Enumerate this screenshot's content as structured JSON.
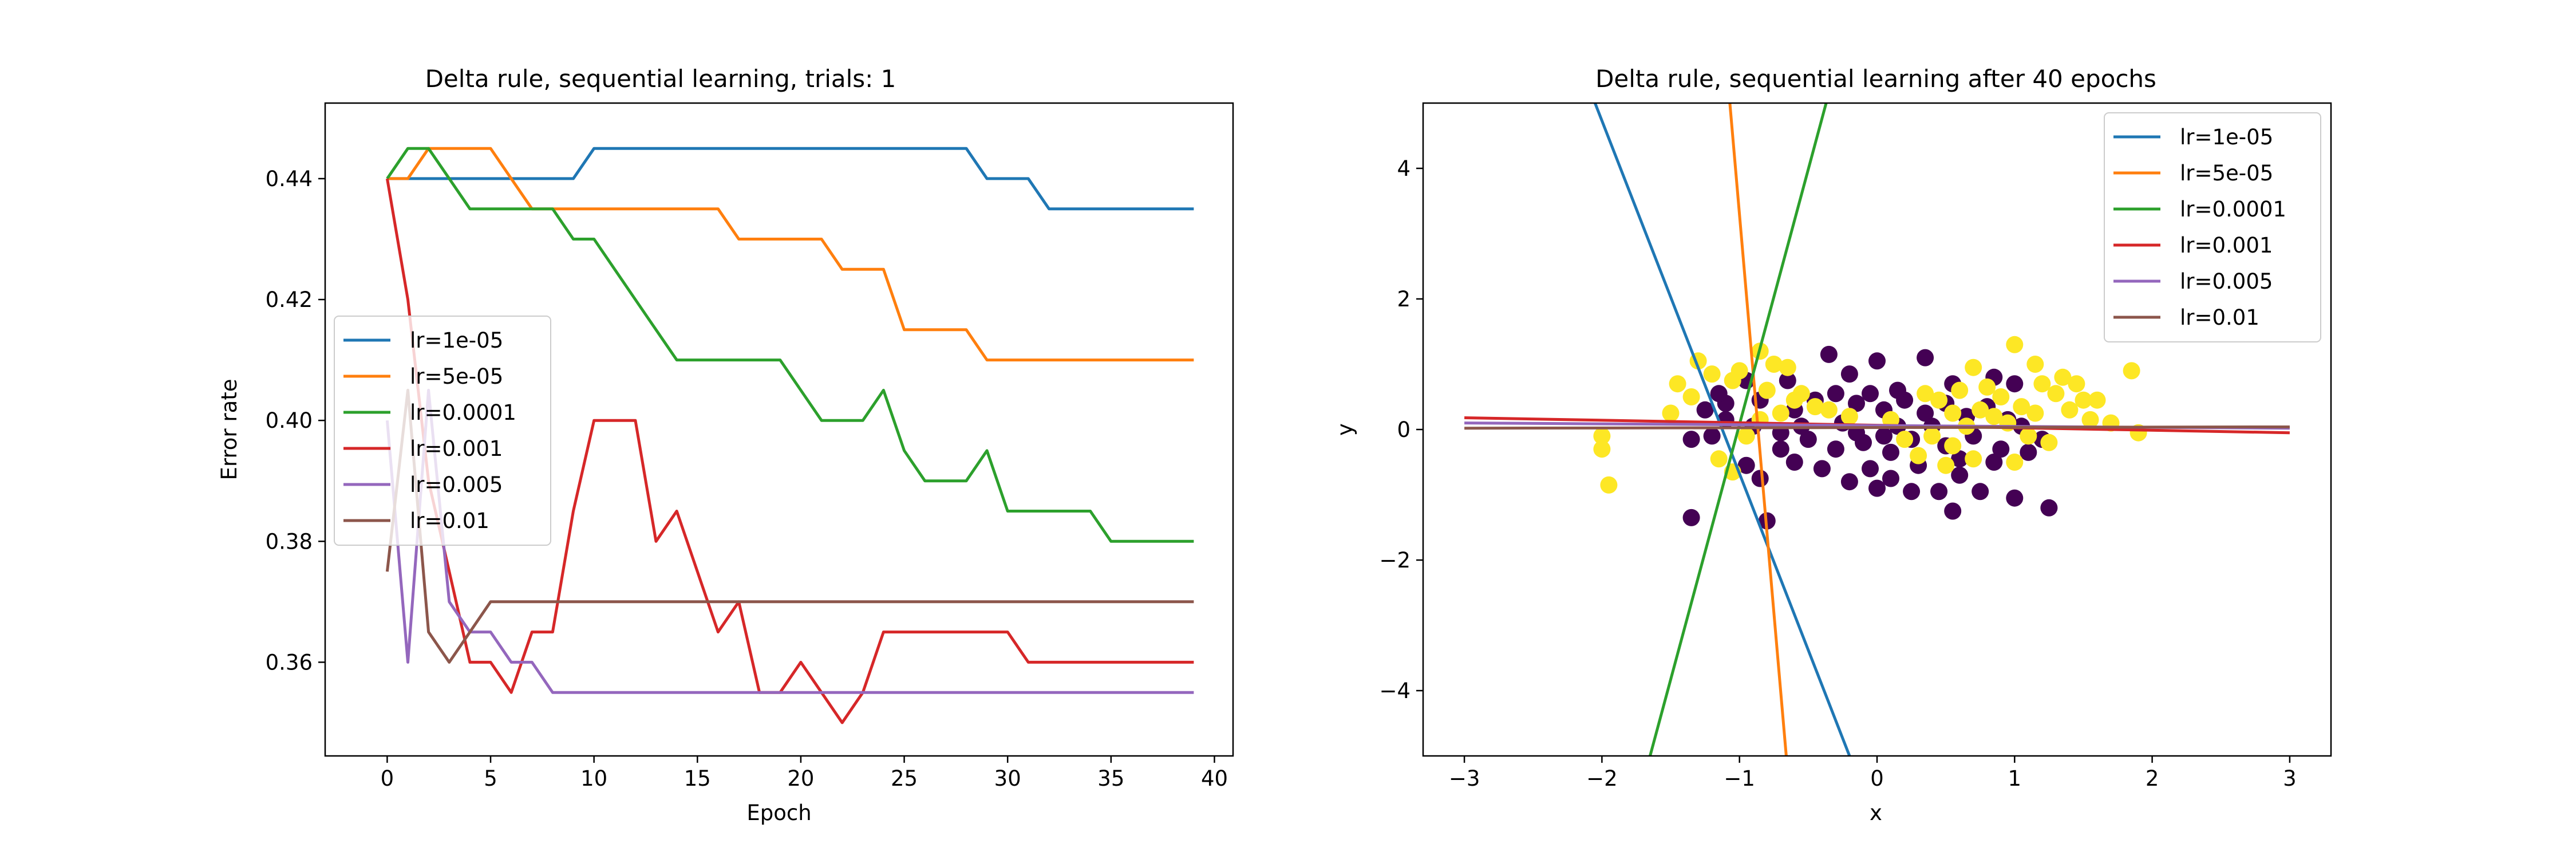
{
  "colors": {
    "series": [
      "#1f77b4",
      "#ff7f0e",
      "#2ca02c",
      "#d62728",
      "#9467bd",
      "#8c564b"
    ],
    "class0": "#440154",
    "class1": "#fde725"
  },
  "chart_data": [
    {
      "type": "line",
      "title": "Delta rule, sequential learning, trials: 1",
      "xlabel": "Epoch",
      "ylabel": "Error rate",
      "xlim": [
        -3,
        40.9
      ],
      "ylim": [
        0.3445,
        0.4525
      ],
      "xticks": [
        0,
        5,
        10,
        15,
        20,
        25,
        30,
        35,
        40
      ],
      "yticks": [
        0.36,
        0.38,
        0.4,
        0.42,
        0.44
      ],
      "xtick_labels": [
        "0",
        "5",
        "10",
        "15",
        "20",
        "25",
        "30",
        "35",
        "40"
      ],
      "ytick_labels": [
        "0.36",
        "0.38",
        "0.40",
        "0.42",
        "0.44"
      ],
      "grid": false,
      "legend_position": "center-left",
      "x": [
        0,
        1,
        2,
        3,
        4,
        5,
        6,
        7,
        8,
        9,
        10,
        11,
        12,
        13,
        14,
        15,
        16,
        17,
        18,
        19,
        20,
        21,
        22,
        23,
        24,
        25,
        26,
        27,
        28,
        29,
        30,
        31,
        32,
        33,
        34,
        35,
        36,
        37,
        38,
        39
      ],
      "series": [
        {
          "name": "lr=1e-05",
          "values": [
            0.44,
            0.44,
            0.44,
            0.44,
            0.44,
            0.44,
            0.44,
            0.44,
            0.44,
            0.44,
            0.445,
            0.445,
            0.445,
            0.445,
            0.445,
            0.445,
            0.445,
            0.445,
            0.445,
            0.445,
            0.445,
            0.445,
            0.445,
            0.445,
            0.445,
            0.445,
            0.445,
            0.445,
            0.445,
            0.44,
            0.44,
            0.44,
            0.435,
            0.435,
            0.435,
            0.435,
            0.435,
            0.435,
            0.435,
            0.435
          ]
        },
        {
          "name": "lr=5e-05",
          "values": [
            0.44,
            0.44,
            0.445,
            0.445,
            0.445,
            0.445,
            0.44,
            0.435,
            0.435,
            0.435,
            0.435,
            0.435,
            0.435,
            0.435,
            0.435,
            0.435,
            0.435,
            0.43,
            0.43,
            0.43,
            0.43,
            0.43,
            0.425,
            0.425,
            0.425,
            0.415,
            0.415,
            0.415,
            0.415,
            0.41,
            0.41,
            0.41,
            0.41,
            0.41,
            0.41,
            0.41,
            0.41,
            0.41,
            0.41,
            0.41
          ]
        },
        {
          "name": "lr=0.0001",
          "values": [
            0.44,
            0.445,
            0.445,
            0.44,
            0.435,
            0.435,
            0.435,
            0.435,
            0.435,
            0.43,
            0.43,
            0.425,
            0.42,
            0.415,
            0.41,
            0.41,
            0.41,
            0.41,
            0.41,
            0.41,
            0.405,
            0.4,
            0.4,
            0.4,
            0.405,
            0.395,
            0.39,
            0.39,
            0.39,
            0.395,
            0.385,
            0.385,
            0.385,
            0.385,
            0.385,
            0.38,
            0.38,
            0.38,
            0.38,
            0.38
          ]
        },
        {
          "name": "lr=0.001",
          "values": [
            0.44,
            0.42,
            0.39,
            0.375,
            0.36,
            0.36,
            0.355,
            0.365,
            0.365,
            0.385,
            0.4,
            0.4,
            0.4,
            0.38,
            0.385,
            0.375,
            0.365,
            0.37,
            0.355,
            0.355,
            0.36,
            0.355,
            0.35,
            0.355,
            0.365,
            0.365,
            0.365,
            0.365,
            0.365,
            0.365,
            0.365,
            0.36,
            0.36,
            0.36,
            0.36,
            0.36,
            0.36,
            0.36,
            0.36,
            0.36
          ]
        },
        {
          "name": "lr=0.005",
          "values": [
            0.4,
            0.36,
            0.405,
            0.37,
            0.365,
            0.365,
            0.36,
            0.36,
            0.355,
            0.355,
            0.355,
            0.355,
            0.355,
            0.355,
            0.355,
            0.355,
            0.355,
            0.355,
            0.355,
            0.355,
            0.355,
            0.355,
            0.355,
            0.355,
            0.355,
            0.355,
            0.355,
            0.355,
            0.355,
            0.355,
            0.355,
            0.355,
            0.355,
            0.355,
            0.355,
            0.355,
            0.355,
            0.355,
            0.355,
            0.355
          ]
        },
        {
          "name": "lr=0.01",
          "values": [
            0.375,
            0.405,
            0.365,
            0.36,
            0.365,
            0.37,
            0.37,
            0.37,
            0.37,
            0.37,
            0.37,
            0.37,
            0.37,
            0.37,
            0.37,
            0.37,
            0.37,
            0.37,
            0.37,
            0.37,
            0.37,
            0.37,
            0.37,
            0.37,
            0.37,
            0.37,
            0.37,
            0.37,
            0.37,
            0.37,
            0.37,
            0.37,
            0.37,
            0.37,
            0.37,
            0.37,
            0.37,
            0.37,
            0.37,
            0.37
          ]
        }
      ]
    },
    {
      "type": "scatter",
      "title": "Delta rule, sequential learning after 40 epochs",
      "xlabel": "x",
      "ylabel": "y",
      "xlim": [
        -3.3,
        3.3
      ],
      "ylim": [
        -5,
        5
      ],
      "xticks": [
        -3,
        -2,
        -1,
        0,
        1,
        2,
        3
      ],
      "yticks": [
        -4,
        -2,
        0,
        2,
        4
      ],
      "xtick_labels": [
        "−3",
        "−2",
        "−1",
        "0",
        "1",
        "2",
        "3"
      ],
      "ytick_labels": [
        "−4",
        "−2",
        "0",
        "2",
        "4"
      ],
      "grid": false,
      "legend_position": "top-right",
      "boundaries": [
        {
          "name": "lr=1e-05",
          "x": [
            -2.05,
            -0.2
          ],
          "y": [
            5,
            -5
          ]
        },
        {
          "name": "lr=5e-05",
          "x": [
            -1.07,
            -0.66
          ],
          "y": [
            5,
            -5
          ]
        },
        {
          "name": "lr=0.0001",
          "x": [
            -1.65,
            -0.37
          ],
          "y": [
            -5,
            5
          ]
        },
        {
          "name": "lr=0.001",
          "x": [
            -3,
            3
          ],
          "y": [
            0.18,
            -0.05
          ]
        },
        {
          "name": "lr=0.005",
          "x": [
            -3,
            3
          ],
          "y": [
            0.1,
            0.02
          ]
        },
        {
          "name": "lr=0.01",
          "x": [
            -3,
            3
          ],
          "y": [
            0.02,
            0.04
          ]
        }
      ],
      "points_class0": [
        [
          -1.35,
          -1.35
        ],
        [
          -0.8,
          -1.4
        ],
        [
          0.55,
          -1.25
        ],
        [
          1.25,
          -1.2
        ],
        [
          0.75,
          -0.95
        ],
        [
          1.0,
          -1.05
        ],
        [
          -0.95,
          -0.55
        ],
        [
          -0.85,
          -0.75
        ],
        [
          -0.6,
          -0.5
        ],
        [
          -0.4,
          -0.6
        ],
        [
          -0.2,
          -0.8
        ],
        [
          0.0,
          -0.9
        ],
        [
          0.1,
          -0.75
        ],
        [
          0.3,
          -0.55
        ],
        [
          0.45,
          -0.95
        ],
        [
          0.6,
          -0.7
        ],
        [
          0.85,
          -0.5
        ],
        [
          -0.3,
          -0.3
        ],
        [
          -0.1,
          -0.2
        ],
        [
          0.1,
          -0.35
        ],
        [
          0.25,
          -0.15
        ],
        [
          0.5,
          -0.25
        ],
        [
          0.7,
          -0.1
        ],
        [
          0.9,
          -0.3
        ],
        [
          1.1,
          -0.35
        ],
        [
          1.2,
          -0.15
        ],
        [
          -0.5,
          -0.15
        ],
        [
          -0.7,
          -0.05
        ],
        [
          -0.9,
          0.05
        ],
        [
          -1.1,
          0.15
        ],
        [
          -1.2,
          -0.1
        ],
        [
          -1.35,
          -0.15
        ],
        [
          -1.25,
          0.3
        ],
        [
          -1.1,
          0.4
        ],
        [
          -0.85,
          0.45
        ],
        [
          -0.6,
          0.3
        ],
        [
          -0.45,
          0.45
        ],
        [
          -0.3,
          0.55
        ],
        [
          -0.15,
          0.4
        ],
        [
          0.05,
          0.3
        ],
        [
          0.2,
          0.45
        ],
        [
          0.35,
          0.25
        ],
        [
          0.5,
          0.4
        ],
        [
          0.65,
          0.2
        ],
        [
          0.8,
          0.35
        ],
        [
          0.95,
          0.15
        ],
        [
          1.05,
          0.05
        ],
        [
          -0.35,
          1.15
        ],
        [
          -0.2,
          0.85
        ],
        [
          0.0,
          1.05
        ],
        [
          0.35,
          1.1
        ],
        [
          0.55,
          0.7
        ],
        [
          0.15,
          0.6
        ],
        [
          -0.05,
          0.55
        ],
        [
          -0.65,
          0.75
        ],
        [
          -0.95,
          0.75
        ],
        [
          -1.15,
          0.55
        ],
        [
          -0.25,
          0.1
        ],
        [
          0.15,
          0.05
        ],
        [
          0.4,
          0.05
        ],
        [
          -0.55,
          0.05
        ],
        [
          0.6,
          -0.45
        ],
        [
          -0.05,
          -0.6
        ],
        [
          0.25,
          -0.95
        ],
        [
          -0.7,
          -0.3
        ],
        [
          1.0,
          0.7
        ],
        [
          0.85,
          0.8
        ],
        [
          -0.15,
          -0.05
        ],
        [
          0.05,
          -0.1
        ]
      ],
      "points_class1": [
        [
          -1.95,
          -0.85
        ],
        [
          -2.0,
          -0.3
        ],
        [
          -2.0,
          -0.1
        ],
        [
          -1.5,
          0.25
        ],
        [
          -1.3,
          1.05
        ],
        [
          -1.2,
          0.85
        ],
        [
          -1.05,
          0.75
        ],
        [
          -0.85,
          1.2
        ],
        [
          -0.75,
          1.0
        ],
        [
          -0.65,
          0.95
        ],
        [
          -0.55,
          0.55
        ],
        [
          -0.45,
          0.35
        ],
        [
          -1.45,
          0.7
        ],
        [
          -1.35,
          0.5
        ],
        [
          -1.0,
          0.9
        ],
        [
          -0.8,
          0.6
        ],
        [
          -1.05,
          -0.65
        ],
        [
          -1.15,
          -0.45
        ],
        [
          -0.95,
          -0.1
        ],
        [
          -0.85,
          0.15
        ],
        [
          -0.7,
          0.25
        ],
        [
          1.0,
          1.3
        ],
        [
          1.15,
          1.0
        ],
        [
          1.2,
          0.7
        ],
        [
          1.3,
          0.55
        ],
        [
          1.4,
          0.3
        ],
        [
          1.5,
          0.45
        ],
        [
          1.55,
          0.15
        ],
        [
          1.6,
          0.45
        ],
        [
          1.7,
          0.1
        ],
        [
          1.85,
          0.9
        ],
        [
          1.9,
          -0.05
        ],
        [
          1.45,
          0.7
        ],
        [
          0.7,
          0.95
        ],
        [
          0.8,
          0.65
        ],
        [
          0.9,
          0.5
        ],
        [
          1.05,
          0.35
        ],
        [
          0.95,
          0.1
        ],
        [
          1.1,
          -0.1
        ],
        [
          1.25,
          -0.2
        ],
        [
          0.55,
          0.25
        ],
        [
          0.45,
          0.45
        ],
        [
          0.35,
          0.55
        ],
        [
          0.4,
          -0.1
        ],
        [
          0.55,
          -0.25
        ],
        [
          0.7,
          -0.45
        ],
        [
          0.5,
          -0.55
        ],
        [
          0.3,
          -0.4
        ],
        [
          0.2,
          -0.15
        ],
        [
          0.65,
          0.05
        ],
        [
          0.85,
          0.2
        ],
        [
          1.15,
          0.25
        ],
        [
          -0.2,
          0.2
        ],
        [
          -0.35,
          0.3
        ],
        [
          0.1,
          0.15
        ],
        [
          1.35,
          0.8
        ],
        [
          0.75,
          0.3
        ],
        [
          0.6,
          0.6
        ],
        [
          1.0,
          -0.5
        ],
        [
          -0.6,
          0.45
        ]
      ]
    }
  ]
}
